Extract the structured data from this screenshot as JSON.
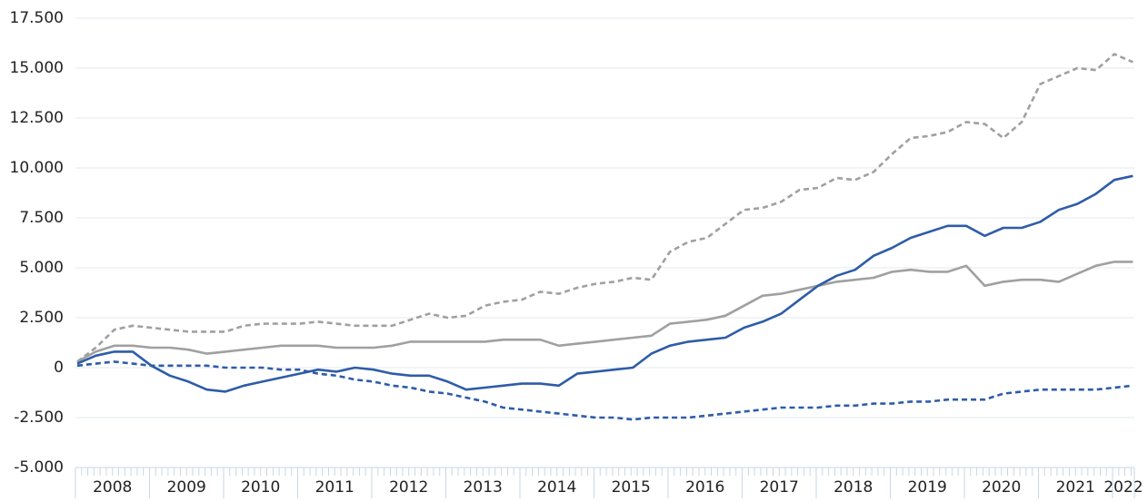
{
  "chart_data": {
    "type": "line",
    "categories": [
      "2008",
      null,
      null,
      null,
      "2009",
      null,
      null,
      null,
      "2010",
      null,
      null,
      null,
      "2011",
      null,
      null,
      null,
      "2012",
      null,
      null,
      null,
      "2013",
      null,
      null,
      null,
      "2014",
      null,
      null,
      null,
      "2015",
      null,
      null,
      null,
      "2016",
      null,
      null,
      null,
      "2017",
      null,
      null,
      null,
      "2018",
      null,
      null,
      null,
      "2019",
      null,
      null,
      null,
      "2020",
      null,
      null,
      null,
      "2021",
      null,
      null,
      null,
      "2022",
      null
    ],
    "series": [
      {
        "color": "#a0a0a0",
        "dash": true,
        "values": [
          300,
          1000,
          1900,
          2100,
          2000,
          1900,
          1800,
          1800,
          1800,
          2100,
          2200,
          2200,
          2200,
          2300,
          2200,
          2100,
          2100,
          2100,
          2400,
          2700,
          2500,
          2600,
          3100,
          3300,
          3400,
          3800,
          3700,
          4000,
          4200,
          4300,
          4500,
          4400,
          5800,
          6300,
          6500,
          7200,
          7900,
          8000,
          8300,
          8900,
          9000,
          9500,
          9400,
          9800,
          10700,
          11500,
          11600,
          11800,
          12300,
          12200,
          11500,
          12300,
          14200,
          14600,
          15000,
          14900,
          15700,
          15300
        ]
      },
      {
        "color": "#a0a0a0",
        "dash": false,
        "values": [
          300,
          800,
          1100,
          1100,
          1000,
          1000,
          900,
          700,
          800,
          900,
          1000,
          1100,
          1100,
          1100,
          1000,
          1000,
          1000,
          1100,
          1300,
          1300,
          1300,
          1300,
          1300,
          1400,
          1400,
          1400,
          1100,
          1200,
          1300,
          1400,
          1500,
          1600,
          2200,
          2300,
          2400,
          2600,
          3100,
          3600,
          3700,
          3900,
          4100,
          4300,
          4400,
          4500,
          4800,
          4900,
          4800,
          4800,
          5100,
          4100,
          4300,
          4400,
          4400,
          4300,
          4700,
          5100,
          5300,
          5300
        ]
      },
      {
        "color": "#2e5ca8",
        "dash": false,
        "values": [
          200,
          600,
          800,
          800,
          100,
          -400,
          -700,
          -1100,
          -1200,
          -900,
          -700,
          -500,
          -300,
          -100,
          -200,
          0,
          -100,
          -300,
          -400,
          -400,
          -700,
          -1100,
          -1000,
          -900,
          -800,
          -800,
          -900,
          -300,
          -200,
          -100,
          0,
          700,
          1100,
          1300,
          1400,
          1500,
          2000,
          2300,
          2700,
          3400,
          4100,
          4600,
          4900,
          5600,
          6000,
          6500,
          6800,
          7100,
          7100,
          6600,
          7000,
          7000,
          7300,
          7900,
          8200,
          8700,
          9400,
          9600
        ]
      },
      {
        "color": "#2e5ca8",
        "dash": true,
        "values": [
          100,
          200,
          300,
          200,
          100,
          100,
          100,
          100,
          0,
          0,
          0,
          -100,
          -100,
          -300,
          -400,
          -600,
          -700,
          -900,
          -1000,
          -1200,
          -1300,
          -1500,
          -1700,
          -2000,
          -2100,
          -2200,
          -2300,
          -2400,
          -2500,
          -2500,
          -2600,
          -2500,
          -2500,
          -2500,
          -2400,
          -2300,
          -2200,
          -2100,
          -2000,
          -2000,
          -2000,
          -1900,
          -1900,
          -1800,
          -1800,
          -1700,
          -1700,
          -1600,
          -1600,
          -1600,
          -1300,
          -1200,
          -1100,
          -1100,
          -1100,
          -1100,
          -1000,
          -900
        ]
      }
    ],
    "ylim": [
      -5000,
      17500
    ],
    "yticks": [
      {
        "value": -5000,
        "label": "-5.000"
      },
      {
        "value": -2500,
        "label": "-2.500"
      },
      0,
      {
        "value": 2500,
        "label": "2.500"
      },
      {
        "value": 5000,
        "label": "5.000"
      },
      {
        "value": 7500,
        "label": "7.500"
      },
      {
        "value": 10000,
        "label": "10.000"
      },
      {
        "value": 12500,
        "label": "12.500"
      },
      {
        "value": 15000,
        "label": "15.000"
      },
      {
        "value": 17500,
        "label": "17.500"
      }
    ],
    "grid": true
  }
}
